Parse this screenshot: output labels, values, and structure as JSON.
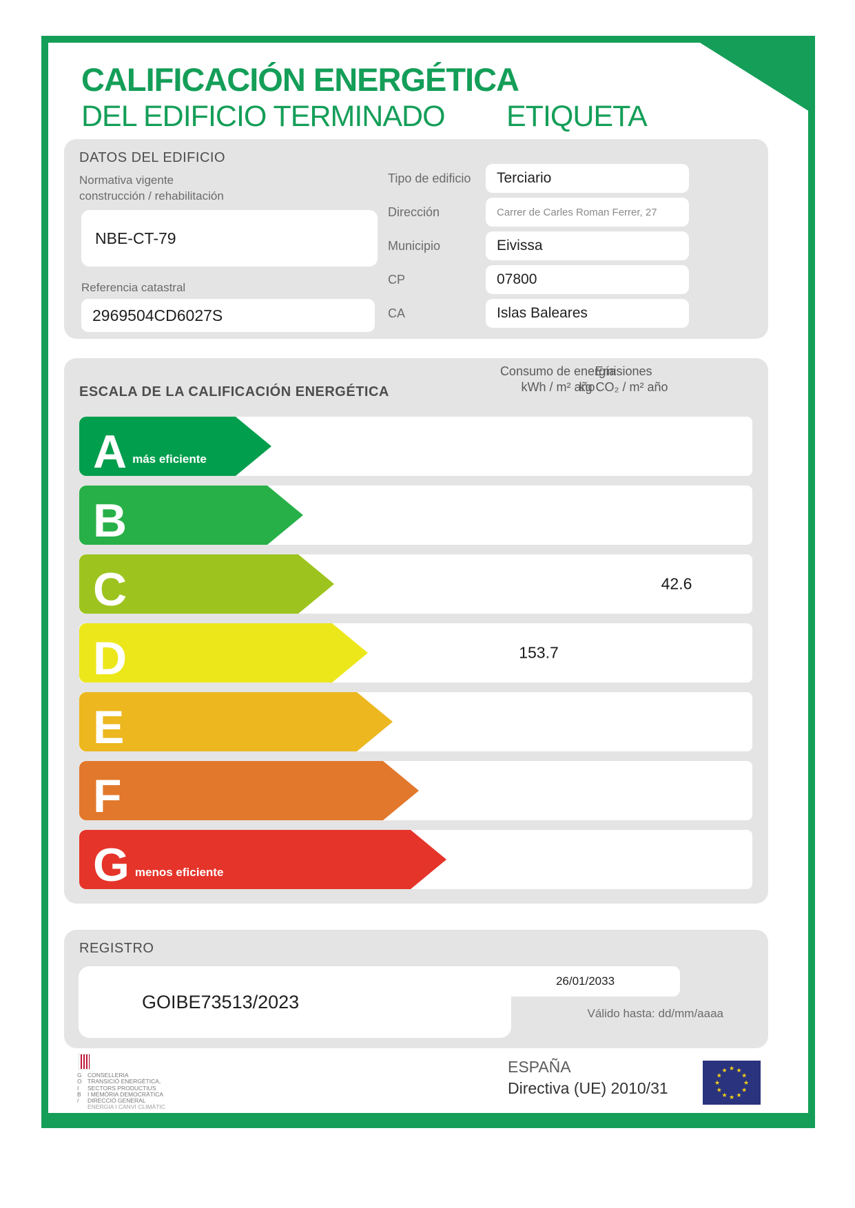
{
  "theme": {
    "frame_green": "#149e58",
    "panel_gray": "#e4e4e4",
    "eu_flag_blue": "#29337e",
    "eu_star_gold": "#f7d117",
    "senyera_red": "#c01236"
  },
  "header": {
    "title_line1": "CALIFICACIÓN ENERGÉTICA",
    "title_line2": "DEL EDIFICIO TERMINADO",
    "title_right": "ETIQUETA"
  },
  "building": {
    "section_title": "DATOS DEL EDIFICIO",
    "normativa_label_1": "Normativa vigente",
    "normativa_label_2": "construcción / rehabilitación",
    "normativa_value": "NBE-CT-79",
    "ref_catastral_label": "Referencia catastral",
    "ref_catastral_value": "2969504CD6027S",
    "fields": [
      {
        "label": "Tipo de edificio",
        "value": "Terciario",
        "small": false
      },
      {
        "label": "Dirección",
        "value": "Carrer de Carles Roman Ferrer, 27",
        "small": true
      },
      {
        "label": "Municipio",
        "value": "Eivissa",
        "small": false
      },
      {
        "label": "CP",
        "value": "07800",
        "small": false
      },
      {
        "label": "CA",
        "value": "Islas Baleares",
        "small": false
      }
    ]
  },
  "scale": {
    "section_title": "ESCALA DE LA CALIFICACIÓN ENERGÉTICA",
    "col_consumo_line1": "Consumo de energía",
    "col_consumo_line2": "kWh / m² año",
    "col_emisiones_line1": "Emisiones",
    "col_emisiones_line2": "kg CO₂ / m² año",
    "bands": [
      {
        "letter": "A",
        "note": "más eficiente",
        "color": "#009e4d",
        "tip": 394
      },
      {
        "letter": "B",
        "note": "",
        "color": "#28b048",
        "tip": 440
      },
      {
        "letter": "C",
        "note": "",
        "color": "#9dc41e",
        "tip": 485,
        "emissions": "42.6"
      },
      {
        "letter": "D",
        "note": "",
        "color": "#ece71a",
        "tip": 534,
        "consumption": "153.7"
      },
      {
        "letter": "E",
        "note": "",
        "color": "#ecb71f",
        "tip": 570
      },
      {
        "letter": "F",
        "note": "",
        "color": "#e2782c",
        "tip": 608
      },
      {
        "letter": "G",
        "note": "menos eficiente",
        "color": "#e5342a",
        "tip": 648
      }
    ]
  },
  "registry": {
    "section_title": "REGISTRO",
    "number": "GOIBE73513/2023",
    "valid_until_date": "26/01/2033",
    "valid_until_label": "Válido hasta: dd/mm/aaaa"
  },
  "footer": {
    "country": "ESPAÑA",
    "directive": "Directiva (UE) 2010/31",
    "logo_lines": [
      [
        "G",
        "CONSELLERIA"
      ],
      [
        "O",
        "TRANSICIÓ ENERGÈTICA,"
      ],
      [
        "I",
        "SECTORS PRODUCTIUS"
      ],
      [
        "B",
        "I MEMÒRIA DEMOCRÀTICA"
      ],
      [
        "/",
        "DIRECCIÓ GENERAL"
      ],
      [
        "",
        "ENERGIA I CANVI CLIMÀTIC"
      ]
    ]
  }
}
